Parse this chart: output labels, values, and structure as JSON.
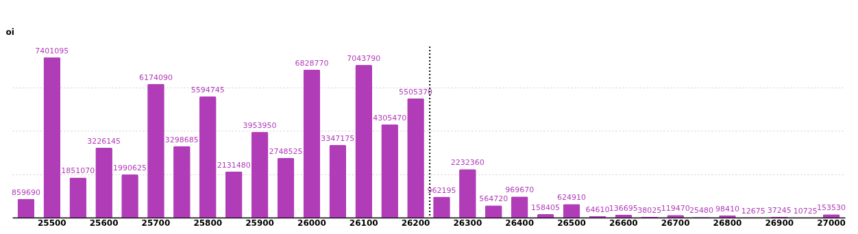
{
  "chart_data": {
    "type": "bar",
    "ylabel": "oi",
    "categories": [
      null,
      "25500",
      null,
      "25600",
      null,
      "25700",
      null,
      "25800",
      null,
      "25900",
      null,
      "26000",
      null,
      "26100",
      null,
      "26200",
      null,
      "26300",
      null,
      "26400",
      null,
      "26500",
      null,
      "26600",
      null,
      "26700",
      null,
      "26800",
      null,
      "26900",
      null,
      "27000"
    ],
    "values": [
      859690,
      7401095,
      1851070,
      3226145,
      1990625,
      6174090,
      3298685,
      5594745,
      2131480,
      3953950,
      2748525,
      6828770,
      3347175,
      7043790,
      4305470,
      5505370,
      962195,
      2232360,
      564720,
      969670,
      158405,
      624910,
      64610,
      136695,
      38025,
      119470,
      25480,
      98410,
      12675,
      37245,
      10725,
      153530
    ],
    "color": "#b03cb8",
    "ylim": [
      0,
      7900000
    ],
    "yticks": [
      {
        "value": 0,
        "label": null
      },
      {
        "value": 2000000,
        "label": null
      },
      {
        "value": 4000000,
        "label": null
      },
      {
        "value": 6000000,
        "label": null
      }
    ],
    "tick_labels": "x",
    "grid": "y",
    "data_labels": true
  }
}
